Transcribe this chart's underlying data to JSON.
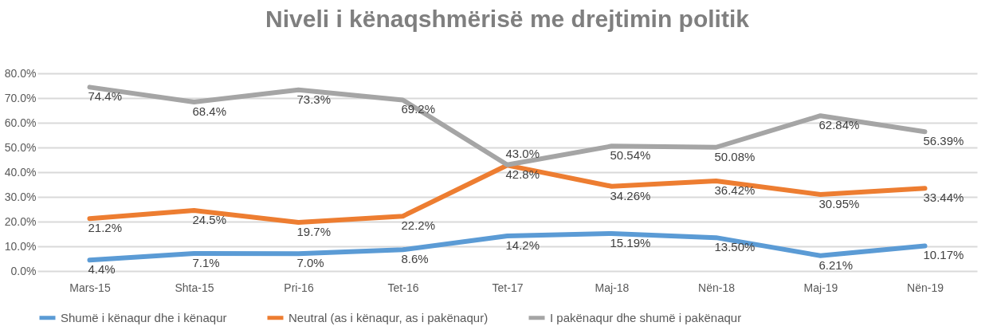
{
  "chart_data": {
    "type": "line",
    "title": "Niveli i kënaqshmërisë me drejtimin politik",
    "categories": [
      "Mars-15",
      "Shta-15",
      "Pri-16",
      "Tet-16",
      "Tet-17",
      "Maj-18",
      "Nën-18",
      "Maj-19",
      "Nën-19"
    ],
    "series": [
      {
        "name": "Shumë i kënaqur dhe i kënaqur",
        "color": "#5b9bd5",
        "values": [
          4.4,
          7.1,
          7.0,
          8.6,
          14.2,
          15.19,
          13.5,
          6.21,
          10.17
        ],
        "value_labels": [
          "4.4%",
          "7.1%",
          "7.0%",
          "8.6%",
          "14.2%",
          "15.19%",
          "13.50%",
          "6.21%",
          "10.17%"
        ]
      },
      {
        "name": "Neutral (as i kënaqur, as i pakënaqur)",
        "color": "#ed7d31",
        "values": [
          21.2,
          24.5,
          19.7,
          22.2,
          42.8,
          34.26,
          36.42,
          30.95,
          33.44
        ],
        "value_labels": [
          "21.2%",
          "24.5%",
          "19.7%",
          "22.2%",
          "42.8%",
          "34.26%",
          "36.42%",
          "30.95%",
          "33.44%"
        ]
      },
      {
        "name": "I pakënaqur dhe shumë i pakënaqur",
        "color": "#a5a5a5",
        "values": [
          74.4,
          68.4,
          73.3,
          69.2,
          43.0,
          50.54,
          50.08,
          62.84,
          56.39
        ],
        "value_labels": [
          "74.4%",
          "68.4%",
          "73.3%",
          "69.2%",
          "43.0%",
          "50.54%",
          "50.08%",
          "62.84%",
          "56.39%"
        ]
      }
    ],
    "ylim": [
      0,
      80
    ],
    "yticks": [
      {
        "value": 0,
        "label": "0.0%"
      },
      {
        "value": 10,
        "label": "10.0%"
      },
      {
        "value": 20,
        "label": "20.0%"
      },
      {
        "value": 30,
        "label": "30.0%"
      },
      {
        "value": 40,
        "label": "40.0%"
      },
      {
        "value": 50,
        "label": "50.0%"
      },
      {
        "value": 60,
        "label": "60.0%"
      },
      {
        "value": 70,
        "label": "70.0%"
      },
      {
        "value": 80,
        "label": "80.0%"
      }
    ],
    "grid": "y",
    "legend": "bottom",
    "marker": "none",
    "line_style": "solid"
  }
}
